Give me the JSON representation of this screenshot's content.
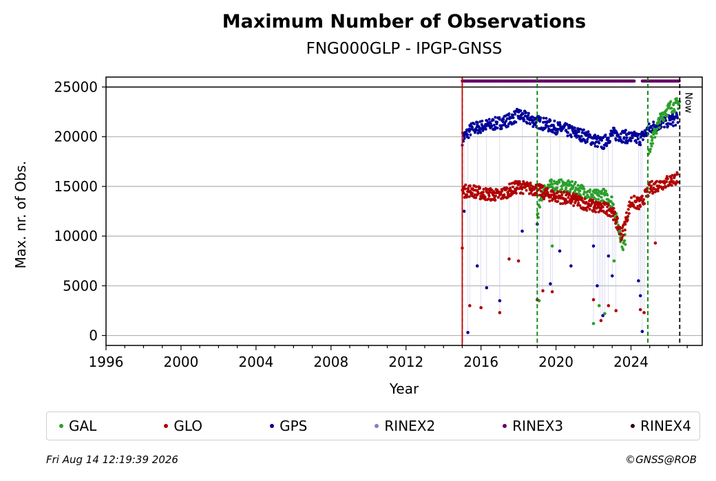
{
  "header": {
    "title": "Maximum Number of Observations",
    "subtitle": "FNG000GLP - IPGP-GNSS"
  },
  "footer": {
    "timestamp": "Fri Aug 14 12:19:39 2026",
    "copyright": "©GNSS@ROB"
  },
  "legend": [
    {
      "label": "GAL",
      "color": "#2ca02c"
    },
    {
      "label": "GLO",
      "color": "#b00000"
    },
    {
      "label": "GPS",
      "color": "#000099"
    },
    {
      "label": "RINEX2",
      "color": "#8080c0"
    },
    {
      "label": "RINEX3",
      "color": "#660066"
    },
    {
      "label": "RINEX4",
      "color": "#330011"
    }
  ],
  "chart_data": {
    "type": "scatter",
    "title": "Maximum Number of Observations",
    "subtitle": "FNG000GLP - IPGP-GNSS",
    "xlabel": "Year",
    "ylabel": "Max. nr. of Obs.",
    "xlim": [
      1996,
      2027.8
    ],
    "ylim": [
      -1000,
      26000
    ],
    "x_ticks": [
      1996,
      2000,
      2004,
      2008,
      2012,
      2016,
      2020,
      2024
    ],
    "y_ticks": [
      0,
      5000,
      10000,
      15000,
      20000,
      25000
    ],
    "grid": "horizontal",
    "legend_position": "bottom",
    "reference_line_y": 25000,
    "vertical_lines": [
      {
        "x": 2015.0,
        "color": "#008000",
        "style": "dashed"
      },
      {
        "x": 2015.0,
        "color": "#cc0000",
        "style": "solid"
      },
      {
        "x": 2019.0,
        "color": "#008000",
        "style": "dashed"
      },
      {
        "x": 2024.9,
        "color": "#008000",
        "style": "dashed"
      },
      {
        "x": 2026.6,
        "color": "#000000",
        "style": "dashed",
        "label": "Now"
      }
    ],
    "series": [
      {
        "name": "GPS",
        "color": "#000099",
        "x": [
          2015.0,
          2015.5,
          2016.0,
          2016.5,
          2017.0,
          2017.5,
          2018.0,
          2018.5,
          2019.0,
          2019.5,
          2020.0,
          2020.5,
          2021.0,
          2021.5,
          2022.0,
          2022.5,
          2023.0,
          2023.5,
          2024.0,
          2024.5,
          2025.0,
          2025.5,
          2026.0,
          2026.5
        ],
        "y": [
          19800,
          20800,
          21000,
          21200,
          21400,
          21700,
          22200,
          21800,
          21500,
          21200,
          20900,
          20700,
          20400,
          20100,
          19700,
          19300,
          20300,
          20100,
          19900,
          19800,
          20800,
          21300,
          21600,
          21800
        ]
      },
      {
        "name": "GAL",
        "color": "#2ca02c",
        "x": [
          2019.0,
          2019.3,
          2019.6,
          2020.0,
          2020.5,
          2021.0,
          2021.5,
          2022.0,
          2022.5,
          2023.0,
          2023.3,
          2023.6,
          2024.9,
          2025.2,
          2025.5,
          2025.8,
          2026.1,
          2026.4,
          2026.6
        ],
        "y": [
          12000,
          14500,
          15000,
          15100,
          15000,
          14800,
          14500,
          14000,
          14200,
          13500,
          11000,
          9000,
          18500,
          20000,
          21500,
          22500,
          23000,
          23200,
          23500
        ]
      },
      {
        "name": "GLO",
        "color": "#b00000",
        "x": [
          2015.0,
          2015.5,
          2016.0,
          2016.5,
          2017.0,
          2017.5,
          2018.0,
          2018.5,
          2019.0,
          2019.5,
          2020.0,
          2020.5,
          2021.0,
          2021.5,
          2022.0,
          2022.5,
          2023.0,
          2023.5,
          2024.0,
          2024.5,
          2025.0,
          2025.5,
          2026.0,
          2026.5
        ],
        "y": [
          14500,
          14600,
          14300,
          14200,
          14100,
          14600,
          15000,
          14800,
          14700,
          14200,
          14000,
          13800,
          13600,
          13300,
          13000,
          12800,
          12600,
          10000,
          13500,
          13200,
          14800,
          15200,
          15500,
          15900
        ]
      },
      {
        "name": "RINEX3",
        "color": "#660066",
        "x": [
          2015.0,
          2026.6
        ],
        "y": [
          25600,
          25600
        ]
      }
    ],
    "dropouts": [
      {
        "series": "GPS",
        "x": [
          2015.1,
          2015.3,
          2015.8,
          2016.3,
          2017.0,
          2018.2,
          2019.0,
          2019.7,
          2020.2,
          2020.8,
          2022.0,
          2022.2,
          2022.5,
          2022.8,
          2023.0,
          2024.4,
          2024.5,
          2024.6
        ],
        "y": [
          12500,
          300,
          7000,
          4800,
          3500,
          10500,
          11200,
          5200,
          8500,
          7000,
          9000,
          5000,
          2000,
          8000,
          6000,
          5500,
          4000,
          400
        ]
      },
      {
        "series": "GAL",
        "x": [
          2019.1,
          2019.8,
          2022.0,
          2022.3,
          2022.6,
          2023.1,
          2023.4
        ],
        "y": [
          3500,
          9000,
          1200,
          3000,
          2200,
          7500,
          10500
        ]
      },
      {
        "series": "GLO",
        "x": [
          2015.0,
          2015.4,
          2016.0,
          2017.0,
          2017.5,
          2018.0,
          2019.0,
          2019.3,
          2019.8,
          2022.0,
          2022.4,
          2022.8,
          2023.2,
          2024.5,
          2024.7,
          2025.3
        ],
        "y": [
          8800,
          3000,
          2800,
          2300,
          7700,
          7500,
          3600,
          4500,
          4400,
          3600,
          1500,
          3000,
          2500,
          2600,
          2300,
          9300
        ]
      }
    ]
  }
}
